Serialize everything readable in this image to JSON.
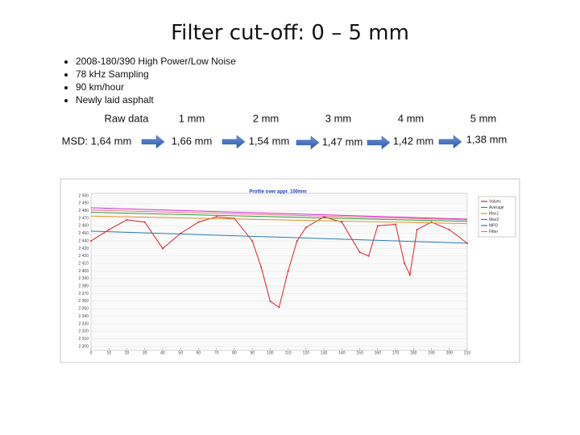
{
  "title": "Filter cut-off: 0 – 5 mm",
  "bullets": [
    "2008-180/390 High Power/Low Noise",
    "78 kHz Sampling",
    "90 km/hour",
    "Newly laid asphalt"
  ],
  "filters": [
    {
      "label": "Raw data",
      "msd": "MSD: 1,64 mm"
    },
    {
      "label": "1 mm",
      "msd": "1,66 mm"
    },
    {
      "label": "2 mm",
      "msd": "1,54 mm"
    },
    {
      "label": "3 mm",
      "msd": "1,47 mm"
    },
    {
      "label": "4 mm",
      "msd": "1,42 mm"
    },
    {
      "label": "5 mm",
      "msd": "1,38 mm"
    }
  ],
  "chart_data": {
    "type": "line",
    "title": "Profile over appr. 100mm",
    "xlim": [
      0,
      210
    ],
    "xticks": [
      0,
      10,
      20,
      30,
      40,
      50,
      60,
      70,
      80,
      90,
      100,
      110,
      120,
      130,
      140,
      150,
      160,
      170,
      180,
      190,
      200,
      210
    ],
    "ylim": [
      2300,
      2500
    ],
    "yticks": [
      {
        "value": 2300,
        "label": "2 300"
      },
      {
        "value": 2310,
        "label": "2 310"
      },
      {
        "value": 2320,
        "label": "2 320"
      },
      {
        "value": 2330,
        "label": "2 330"
      },
      {
        "value": 2340,
        "label": "2 340"
      },
      {
        "value": 2350,
        "label": "2 350"
      },
      {
        "value": 2360,
        "label": "2 360"
      },
      {
        "value": 2370,
        "label": "2 370"
      },
      {
        "value": 2380,
        "label": "2 380"
      },
      {
        "value": 2390,
        "label": "2 390"
      },
      {
        "value": 2400,
        "label": "2 400"
      },
      {
        "value": 2410,
        "label": "2 410"
      },
      {
        "value": 2420,
        "label": "2 420"
      },
      {
        "value": 2430,
        "label": "2 430"
      },
      {
        "value": 2440,
        "label": "2 440"
      },
      {
        "value": 2450,
        "label": "2 450"
      },
      {
        "value": 2460,
        "label": "2 460"
      },
      {
        "value": 2470,
        "label": "2 470"
      },
      {
        "value": 2480,
        "label": "2 480"
      },
      {
        "value": 2490,
        "label": "2 490"
      },
      {
        "value": 2500,
        "label": "2 500"
      }
    ],
    "grid": true,
    "series": [
      {
        "name": "Values",
        "color": "#e0202a",
        "marker": true,
        "x": [
          0,
          10,
          20,
          30,
          40,
          50,
          60,
          70,
          80,
          90,
          95,
          100,
          105,
          110,
          115,
          120,
          130,
          140,
          150,
          155,
          160,
          170,
          175,
          178,
          182,
          190,
          200,
          210
        ],
        "values": [
          2440,
          2455,
          2468,
          2465,
          2430,
          2450,
          2465,
          2472,
          2470,
          2440,
          2405,
          2360,
          2352,
          2400,
          2440,
          2458,
          2472,
          2465,
          2425,
          2420,
          2460,
          2462,
          2410,
          2395,
          2455,
          2465,
          2455,
          2437
        ]
      },
      {
        "name": "Average",
        "color": "#2a9a3a",
        "x": [
          0,
          210
        ],
        "values": [
          2478,
          2466
        ]
      },
      {
        "name": "Max1",
        "color": "#e0902a",
        "x": [
          0,
          210
        ],
        "values": [
          2473,
          2463
        ]
      },
      {
        "name": "Max2",
        "color": "#d030d0",
        "x": [
          0,
          210
        ],
        "values": [
          2484,
          2469
        ]
      },
      {
        "name": "MPD",
        "color": "#2a7ab0",
        "x": [
          0,
          210
        ],
        "values": [
          2453,
          2437
        ]
      },
      {
        "name": "Filter",
        "color": "#f07080",
        "x": [
          0,
          210
        ],
        "values": [
          2481,
          2468
        ]
      }
    ]
  }
}
